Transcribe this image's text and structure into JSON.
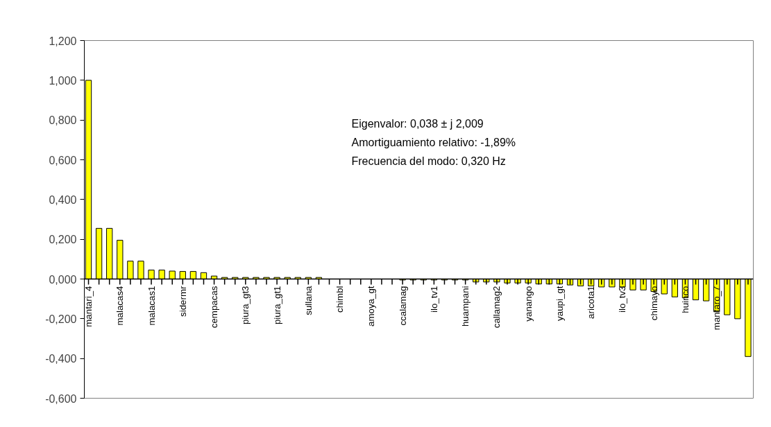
{
  "chart_data": {
    "type": "bar",
    "categories": [
      "mantari_4",
      null,
      null,
      "malacas4",
      null,
      null,
      "malacas1",
      null,
      null,
      "sidermr",
      null,
      null,
      "cempacas",
      null,
      null,
      "piura_gt3",
      null,
      null,
      "piura_gt1",
      null,
      null,
      "sullana",
      null,
      null,
      "chimbl",
      null,
      null,
      "amoya_gt",
      null,
      null,
      "ccalamag",
      null,
      null,
      "ilo_tv1",
      null,
      null,
      "huampani",
      null,
      null,
      "callamag2",
      null,
      null,
      "yanango",
      null,
      null,
      "yaupi_gt",
      null,
      null,
      "aricota1",
      null,
      null,
      "ilo_tv3",
      null,
      null,
      "chimayo",
      null,
      null,
      "huinco",
      null,
      null,
      "mantaro_7",
      null,
      null,
      null
    ],
    "values": [
      1.0,
      0.255,
      0.255,
      0.195,
      0.09,
      0.09,
      0.045,
      0.045,
      0.04,
      0.038,
      0.038,
      0.032,
      0.015,
      0.008,
      0.008,
      0.008,
      0.008,
      0.008,
      0.008,
      0.008,
      0.008,
      0.008,
      0.008,
      0,
      0,
      0,
      0,
      0,
      0,
      0,
      -0.005,
      -0.005,
      -0.005,
      -0.005,
      -0.005,
      -0.005,
      -0.005,
      -0.015,
      -0.015,
      -0.015,
      -0.02,
      -0.02,
      -0.02,
      -0.025,
      -0.025,
      -0.025,
      -0.03,
      -0.035,
      -0.035,
      -0.04,
      -0.04,
      -0.04,
      -0.055,
      -0.055,
      -0.063,
      -0.075,
      -0.09,
      -0.095,
      -0.105,
      -0.11,
      -0.165,
      -0.18,
      -0.2,
      -0.39
    ],
    "color": "#ffff00",
    "ylim": [
      -0.6,
      1.2
    ],
    "yticks": [
      {
        "value": -0.6,
        "label": "-0,600"
      },
      {
        "value": -0.4,
        "label": "-0,400"
      },
      {
        "value": -0.2,
        "label": "-0,200"
      },
      {
        "value": 0,
        "label": "0,000"
      },
      {
        "value": 0.2,
        "label": "0,200"
      },
      {
        "value": 0.4,
        "label": "0,400"
      },
      {
        "value": 0.6,
        "label": "0,600"
      },
      {
        "value": 0.8,
        "label": "0,800"
      },
      {
        "value": 1.0,
        "label": "1,000"
      },
      {
        "value": 1.2,
        "label": "1,200"
      }
    ],
    "annotations": [
      "Eigenvalor:  0,038 ± j 2,009",
      "Amortiguamiento relativo:  -1,89%",
      "Frecuencia del modo:  0,320 Hz"
    ]
  }
}
